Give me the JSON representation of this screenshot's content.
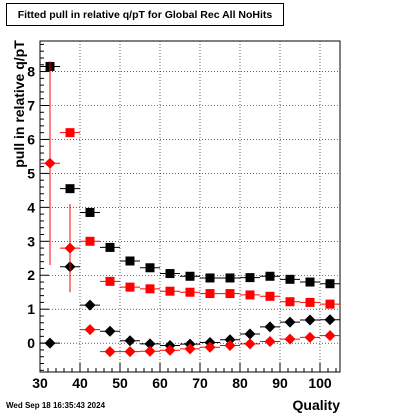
{
  "chart_data": {
    "type": "scatter",
    "title": "Fitted pull in relative q/pT for Global Rec All NoHits",
    "xlabel": "Quality",
    "ylabel": "pull in relative q/pT",
    "xlim": [
      30,
      105
    ],
    "ylim": [
      -0.85,
      8.9
    ],
    "x_ticks": [
      30,
      40,
      50,
      60,
      70,
      80,
      90,
      100
    ],
    "y_ticks": [
      0,
      1,
      2,
      3,
      4,
      5,
      6,
      7,
      8
    ],
    "grid": true,
    "series": [
      {
        "marker": "square",
        "color": "#000000",
        "x": [
          32.5,
          37.5,
          42.5,
          47.5,
          52.5,
          57.5,
          62.5,
          67.5,
          72.5,
          77.5,
          82.5,
          87.5,
          92.5,
          97.5,
          102.5
        ],
        "y": [
          8.15,
          4.55,
          3.85,
          2.82,
          2.42,
          2.22,
          2.05,
          1.97,
          1.92,
          1.92,
          1.93,
          1.97,
          1.88,
          1.8,
          1.75
        ],
        "yerr": [
          0,
          0,
          0,
          0,
          0,
          0,
          0,
          0,
          0,
          0,
          0,
          0,
          0,
          0,
          0
        ]
      },
      {
        "marker": "square",
        "color": "#ff0000",
        "x": [
          37.5,
          42.5,
          47.5,
          52.5,
          57.5,
          62.5,
          67.5,
          72.5,
          77.5,
          82.5,
          87.5,
          92.5,
          97.5,
          102.5
        ],
        "y": [
          6.2,
          3.0,
          1.82,
          1.65,
          1.6,
          1.53,
          1.5,
          1.46,
          1.46,
          1.42,
          1.38,
          1.22,
          1.2,
          1.15
        ],
        "yerr": [
          0,
          0,
          0,
          0,
          0,
          0,
          0,
          0,
          0,
          0,
          0,
          0,
          0,
          0
        ]
      },
      {
        "marker": "diamond",
        "color": "#000000",
        "x": [
          32.5,
          37.5,
          42.5,
          47.5,
          52.5,
          57.5,
          62.5,
          67.5,
          72.5,
          77.5,
          82.5,
          87.5,
          92.5,
          97.5,
          102.5
        ],
        "y": [
          0.0,
          2.25,
          1.12,
          0.35,
          0.07,
          -0.02,
          -0.07,
          -0.03,
          0.02,
          0.1,
          0.27,
          0.48,
          0.62,
          0.68,
          0.69
        ],
        "yerr": [
          0,
          0,
          0,
          0,
          0,
          0,
          0,
          0,
          0,
          0,
          0,
          0,
          0,
          0,
          0
        ]
      },
      {
        "marker": "diamond",
        "color": "#ff0000",
        "x": [
          32.5,
          37.5,
          42.5,
          47.5,
          52.5,
          57.5,
          62.5,
          67.5,
          72.5,
          77.5,
          82.5,
          87.5,
          92.5,
          97.5,
          102.5
        ],
        "y": [
          5.3,
          2.8,
          0.4,
          -0.25,
          -0.25,
          -0.24,
          -0.21,
          -0.17,
          -0.12,
          -0.07,
          -0.02,
          0.05,
          0.12,
          0.17,
          0.22
        ],
        "yerr": [
          3.0,
          1.3,
          0,
          0,
          0,
          0,
          0,
          0,
          0,
          0,
          0,
          0,
          0,
          0,
          0
        ]
      }
    ]
  },
  "footer": {
    "timestamp": "Wed Sep 18 16:35:43 2024"
  }
}
